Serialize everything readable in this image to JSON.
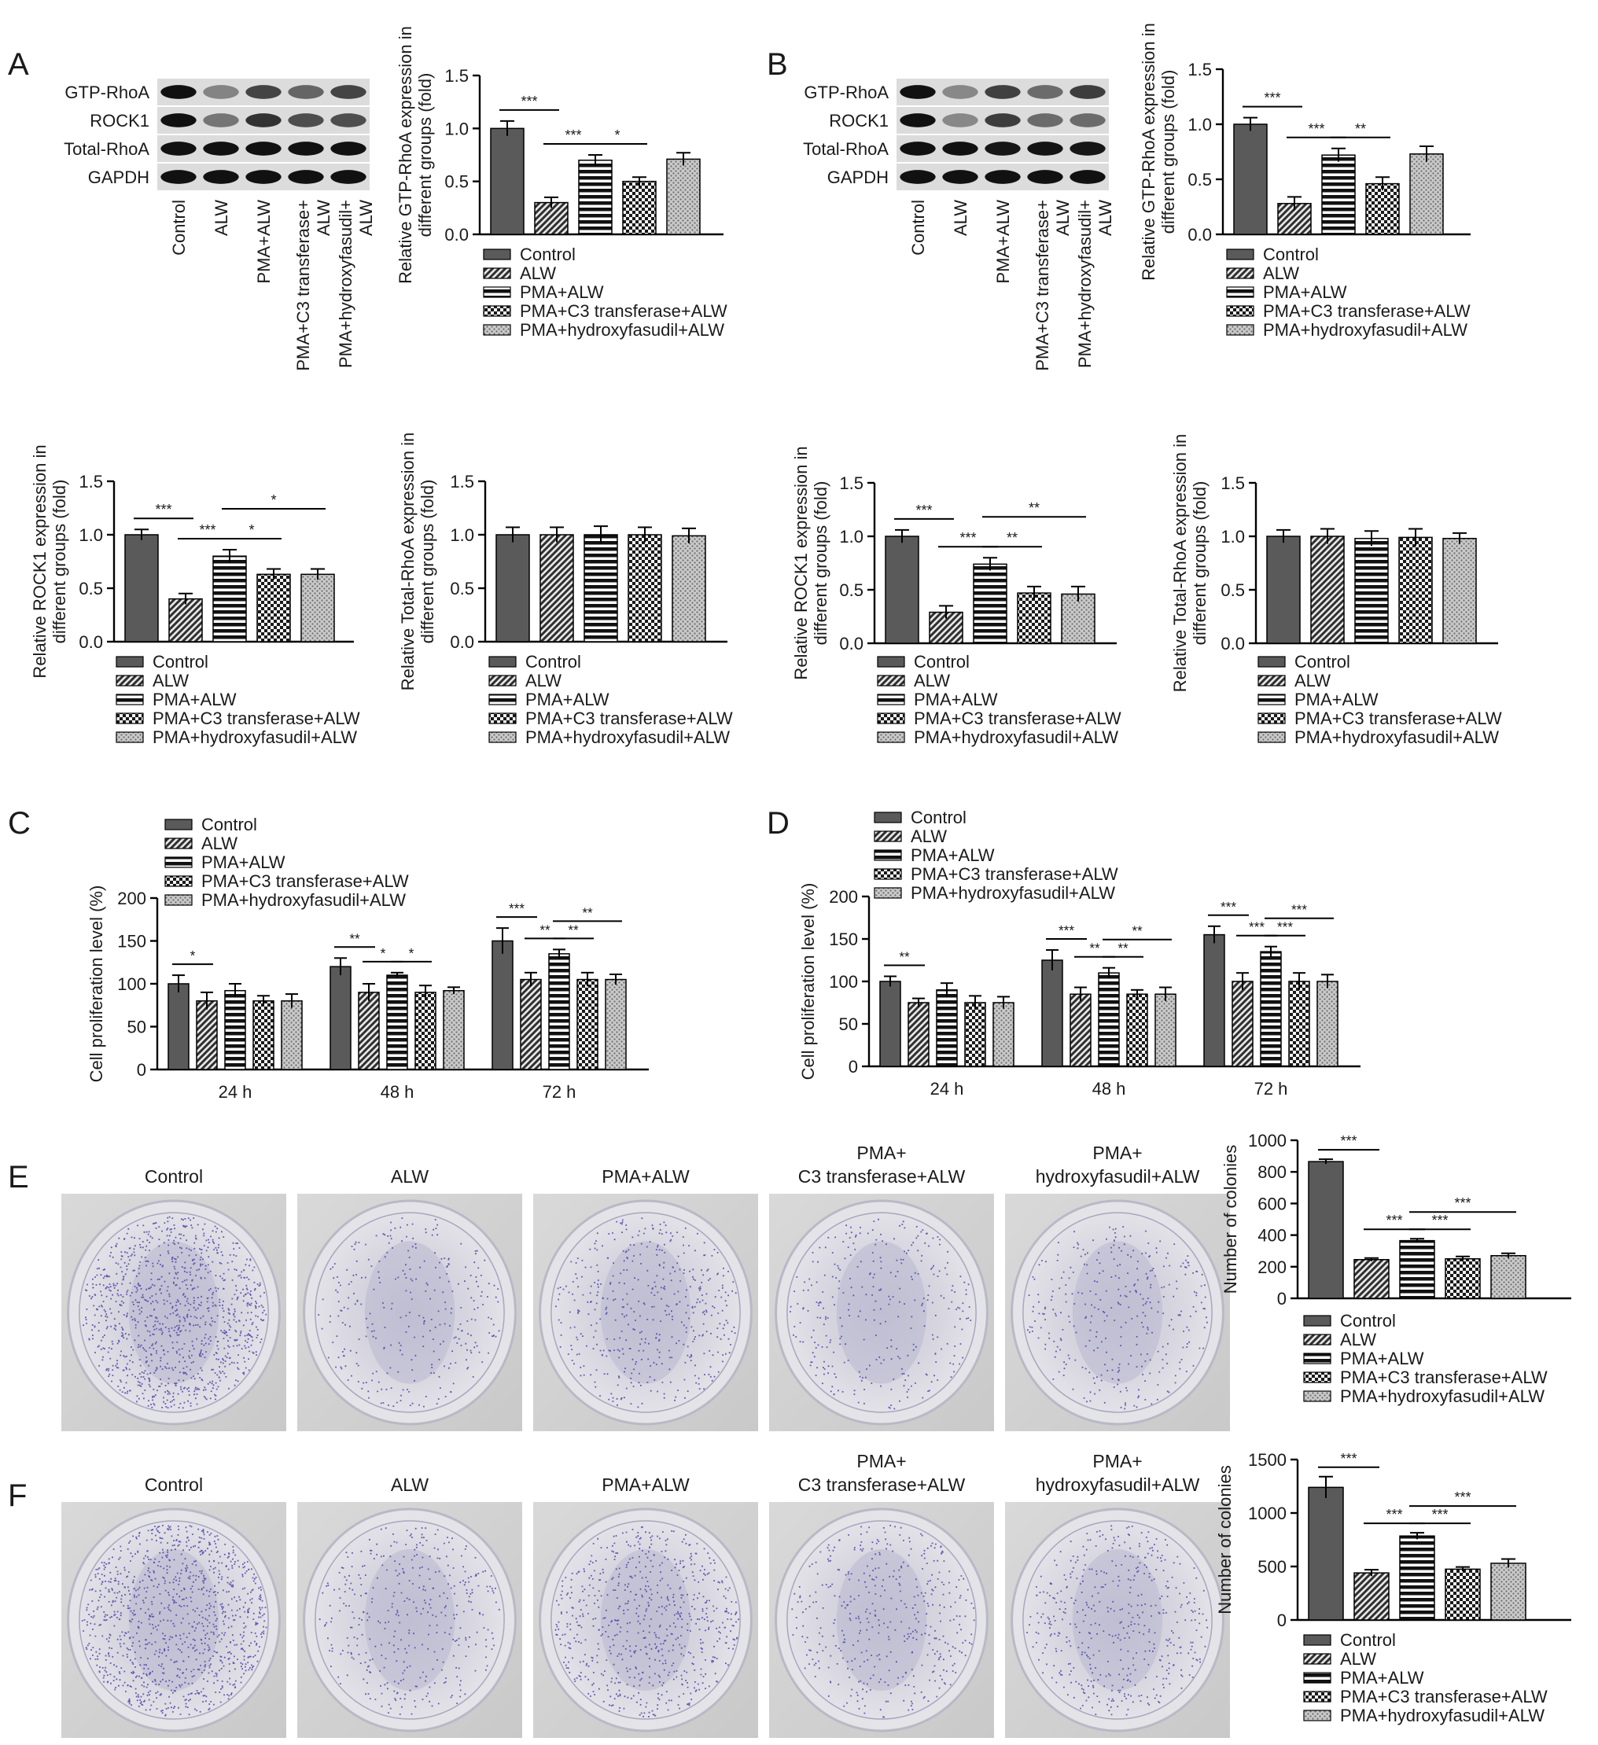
{
  "groups": [
    "Control",
    "ALW",
    "PMA+ALW",
    "PMA+C3 transferase+ALW",
    "PMA+hydroxyfasudil+ALW"
  ],
  "panel_letters": [
    "A",
    "B",
    "C",
    "D",
    "E",
    "F"
  ],
  "blots": {
    "lanes": [
      "Control",
      "ALW",
      "PMA+ALW",
      "PMA+C3 transferase+ALW",
      "PMA+hydroxyfasudil+ALW"
    ],
    "A": {
      "rows": [
        {
          "label": "GTP-RhoA",
          "intensity": [
            1.0,
            0.3,
            0.7,
            0.5,
            0.7
          ]
        },
        {
          "label": "ROCK1",
          "intensity": [
            1.0,
            0.4,
            0.8,
            0.63,
            0.63
          ]
        },
        {
          "label": "Total-RhoA",
          "intensity": [
            1.0,
            1.0,
            1.0,
            1.0,
            1.0
          ]
        },
        {
          "label": "GAPDH",
          "intensity": [
            1.0,
            1.0,
            1.0,
            1.0,
            1.0
          ]
        }
      ]
    },
    "B": {
      "rows": [
        {
          "label": "GTP-RhoA",
          "intensity": [
            1.0,
            0.28,
            0.72,
            0.46,
            0.73
          ]
        },
        {
          "label": "ROCK1",
          "intensity": [
            1.0,
            0.28,
            0.73,
            0.46,
            0.46
          ]
        },
        {
          "label": "Total-RhoA",
          "intensity": [
            1.0,
            1.0,
            0.98,
            0.99,
            0.97
          ]
        },
        {
          "label": "GAPDH",
          "intensity": [
            1.0,
            1.0,
            1.0,
            1.0,
            1.0
          ]
        }
      ]
    }
  },
  "dishes": {
    "E": {
      "labels": [
        [
          "Control"
        ],
        [
          "ALW"
        ],
        [
          "PMA+ALW"
        ],
        [
          "PMA+",
          "C3 transferase+ALW"
        ],
        [
          "PMA+",
          "hydroxyfasudil+ALW"
        ]
      ],
      "colony_density": [
        1.0,
        0.28,
        0.42,
        0.29,
        0.31
      ]
    },
    "F": {
      "labels": [
        [
          "Control"
        ],
        [
          "ALW"
        ],
        [
          "PMA+ALW"
        ],
        [
          "PMA+",
          "C3 transferase+ALW"
        ],
        [
          "PMA+",
          "hydroxyfasudil+ALW"
        ]
      ],
      "colony_density": [
        1.0,
        0.36,
        0.63,
        0.39,
        0.43
      ]
    }
  },
  "chart_data": [
    {
      "id": "A1",
      "type": "bar",
      "ylabel": [
        "Relative GTP-RhoA expression in",
        "different groups (fold)"
      ],
      "ylim": [
        0,
        1.5
      ],
      "yticks": [
        "0.0",
        "0.5",
        "1.0",
        "1.5"
      ],
      "values": [
        1.0,
        0.3,
        0.7,
        0.5,
        0.71
      ],
      "errors": [
        0.07,
        0.05,
        0.05,
        0.04,
        0.06
      ],
      "sig": [
        {
          "from": 0,
          "to": 1,
          "label": "***"
        },
        {
          "from": 1,
          "to": 2,
          "label": "***"
        },
        {
          "from": 2,
          "to": 3,
          "label": "*"
        }
      ]
    },
    {
      "id": "B1",
      "type": "bar",
      "ylabel": [
        "Relative GTP-RhoA expression in",
        "different groups (fold)"
      ],
      "ylim": [
        0,
        1.5
      ],
      "yticks": [
        "0.0",
        "0.5",
        "1.0",
        "1.5"
      ],
      "values": [
        1.0,
        0.28,
        0.72,
        0.46,
        0.73
      ],
      "errors": [
        0.06,
        0.06,
        0.06,
        0.06,
        0.07
      ],
      "sig": [
        {
          "from": 0,
          "to": 1,
          "label": "***"
        },
        {
          "from": 1,
          "to": 2,
          "label": "***"
        },
        {
          "from": 2,
          "to": 3,
          "label": "**"
        }
      ]
    },
    {
      "id": "A2",
      "type": "bar",
      "ylabel": [
        "Relative ROCK1 expression in",
        "different groups (fold)"
      ],
      "ylim": [
        0,
        1.5
      ],
      "yticks": [
        "0.0",
        "0.5",
        "1.0",
        "1.5"
      ],
      "values": [
        1.0,
        0.4,
        0.8,
        0.63,
        0.63
      ],
      "errors": [
        0.05,
        0.05,
        0.06,
        0.05,
        0.05
      ],
      "sig": [
        {
          "from": 0,
          "to": 1,
          "label": "***"
        },
        {
          "from": 1,
          "to": 2,
          "label": "***"
        },
        {
          "from": 2,
          "to": 3,
          "label": "*"
        },
        {
          "from": 2,
          "to": 4,
          "label": "*"
        }
      ]
    },
    {
      "id": "A3",
      "type": "bar",
      "ylabel": [
        "Relative Total-RhoA expression in",
        "different groups (fold)"
      ],
      "ylim": [
        0,
        1.5
      ],
      "yticks": [
        "0.0",
        "0.5",
        "1.0",
        "1.5"
      ],
      "values": [
        1.0,
        1.0,
        1.0,
        1.0,
        0.99
      ],
      "errors": [
        0.07,
        0.07,
        0.08,
        0.07,
        0.07
      ],
      "sig": []
    },
    {
      "id": "B2",
      "type": "bar",
      "ylabel": [
        "Relative ROCK1 expression in",
        "different groups (fold)"
      ],
      "ylim": [
        0,
        1.5
      ],
      "yticks": [
        "0.0",
        "0.5",
        "1.0",
        "1.5"
      ],
      "values": [
        1.0,
        0.29,
        0.74,
        0.47,
        0.46
      ],
      "errors": [
        0.06,
        0.06,
        0.06,
        0.06,
        0.07
      ],
      "sig": [
        {
          "from": 0,
          "to": 1,
          "label": "***"
        },
        {
          "from": 1,
          "to": 2,
          "label": "***"
        },
        {
          "from": 2,
          "to": 3,
          "label": "**"
        },
        {
          "from": 2,
          "to": 4,
          "label": "**"
        }
      ]
    },
    {
      "id": "B3",
      "type": "bar",
      "ylabel": [
        "Relative Total-RhoA expression in",
        "different groups (fold)"
      ],
      "ylim": [
        0,
        1.5
      ],
      "yticks": [
        "0.0",
        "0.5",
        "1.0",
        "1.5"
      ],
      "values": [
        1.0,
        1.0,
        0.98,
        0.99,
        0.98
      ],
      "errors": [
        0.06,
        0.07,
        0.07,
        0.08,
        0.05
      ],
      "sig": []
    },
    {
      "id": "C",
      "type": "bar",
      "ylabel": [
        "Cell proliferation level (%)"
      ],
      "ylim": [
        0,
        200
      ],
      "yticks": [
        "0",
        "50",
        "100",
        "150",
        "200"
      ],
      "categories": [
        "24 h",
        "48 h",
        "72 h"
      ],
      "series": [
        {
          "name": "Control",
          "values": [
            100,
            120,
            150
          ],
          "errors": [
            10,
            10,
            15
          ]
        },
        {
          "name": "ALW",
          "values": [
            80,
            90,
            105
          ],
          "errors": [
            10,
            10,
            8
          ]
        },
        {
          "name": "PMA+ALW",
          "values": [
            92,
            110,
            135
          ],
          "errors": [
            8,
            3,
            5
          ]
        },
        {
          "name": "PMA+C3 transferase+ALW",
          "values": [
            80,
            90,
            105
          ],
          "errors": [
            6,
            8,
            8
          ]
        },
        {
          "name": "PMA+hydroxyfasudil+ALW",
          "values": [
            80,
            92,
            105
          ],
          "errors": [
            8,
            4,
            6
          ]
        }
      ],
      "sig": [
        {
          "cat": 0,
          "from": 0,
          "to": 1,
          "label": "*"
        },
        {
          "cat": 1,
          "from": 0,
          "to": 1,
          "label": "**"
        },
        {
          "cat": 1,
          "from": 1,
          "to": 2,
          "label": "*"
        },
        {
          "cat": 1,
          "from": 2,
          "to": 3,
          "label": "*"
        },
        {
          "cat": 2,
          "from": 0,
          "to": 1,
          "label": "***"
        },
        {
          "cat": 2,
          "from": 1,
          "to": 2,
          "label": "**"
        },
        {
          "cat": 2,
          "from": 2,
          "to": 3,
          "label": "**"
        },
        {
          "cat": 2,
          "from": 2,
          "to": 4,
          "label": "**"
        }
      ]
    },
    {
      "id": "D",
      "type": "bar",
      "ylabel": [
        "Cell proliferation level (%)"
      ],
      "ylim": [
        0,
        200
      ],
      "yticks": [
        "0",
        "50",
        "100",
        "150",
        "200"
      ],
      "categories": [
        "24 h",
        "48 h",
        "72 h"
      ],
      "series": [
        {
          "name": "Control",
          "values": [
            100,
            125,
            155
          ],
          "errors": [
            6,
            12,
            10
          ]
        },
        {
          "name": "ALW",
          "values": [
            75,
            85,
            100
          ],
          "errors": [
            5,
            8,
            10
          ]
        },
        {
          "name": "PMA+ALW",
          "values": [
            90,
            110,
            135
          ],
          "errors": [
            8,
            6,
            6
          ]
        },
        {
          "name": "PMA+C3 transferase+ALW",
          "values": [
            75,
            85,
            100
          ],
          "errors": [
            8,
            5,
            10
          ]
        },
        {
          "name": "PMA+hydroxyfasudil+ALW",
          "values": [
            75,
            85,
            100
          ],
          "errors": [
            7,
            8,
            8
          ]
        }
      ],
      "sig": [
        {
          "cat": 0,
          "from": 0,
          "to": 1,
          "label": "**"
        },
        {
          "cat": 1,
          "from": 0,
          "to": 1,
          "label": "***"
        },
        {
          "cat": 1,
          "from": 1,
          "to": 2,
          "label": "**"
        },
        {
          "cat": 1,
          "from": 2,
          "to": 3,
          "label": "**"
        },
        {
          "cat": 1,
          "from": 2,
          "to": 4,
          "label": "**"
        },
        {
          "cat": 2,
          "from": 0,
          "to": 1,
          "label": "***"
        },
        {
          "cat": 2,
          "from": 1,
          "to": 2,
          "label": "***"
        },
        {
          "cat": 2,
          "from": 2,
          "to": 3,
          "label": "***"
        },
        {
          "cat": 2,
          "from": 2,
          "to": 4,
          "label": "***"
        }
      ]
    },
    {
      "id": "E",
      "type": "bar",
      "ylabel": [
        "Number of colonies"
      ],
      "ylim": [
        0,
        1000
      ],
      "yticks": [
        "0",
        "200",
        "400",
        "600",
        "800",
        "1000"
      ],
      "values": [
        865,
        245,
        365,
        250,
        270
      ],
      "errors": [
        15,
        10,
        12,
        15,
        15
      ],
      "sig": [
        {
          "from": 0,
          "to": 1,
          "label": "***"
        },
        {
          "from": 1,
          "to": 2,
          "label": "***"
        },
        {
          "from": 2,
          "to": 3,
          "label": "***"
        },
        {
          "from": 2,
          "to": 4,
          "label": "***"
        }
      ]
    },
    {
      "id": "F",
      "type": "bar",
      "ylabel": [
        "Number of colonies"
      ],
      "ylim": [
        0,
        1500
      ],
      "yticks": [
        "0",
        "500",
        "1000",
        "1500"
      ],
      "values": [
        1240,
        440,
        785,
        475,
        530
      ],
      "errors": [
        100,
        30,
        30,
        20,
        40
      ],
      "sig": [
        {
          "from": 0,
          "to": 1,
          "label": "***"
        },
        {
          "from": 1,
          "to": 2,
          "label": "***"
        },
        {
          "from": 2,
          "to": 3,
          "label": "***"
        },
        {
          "from": 2,
          "to": 4,
          "label": "***"
        }
      ]
    }
  ]
}
